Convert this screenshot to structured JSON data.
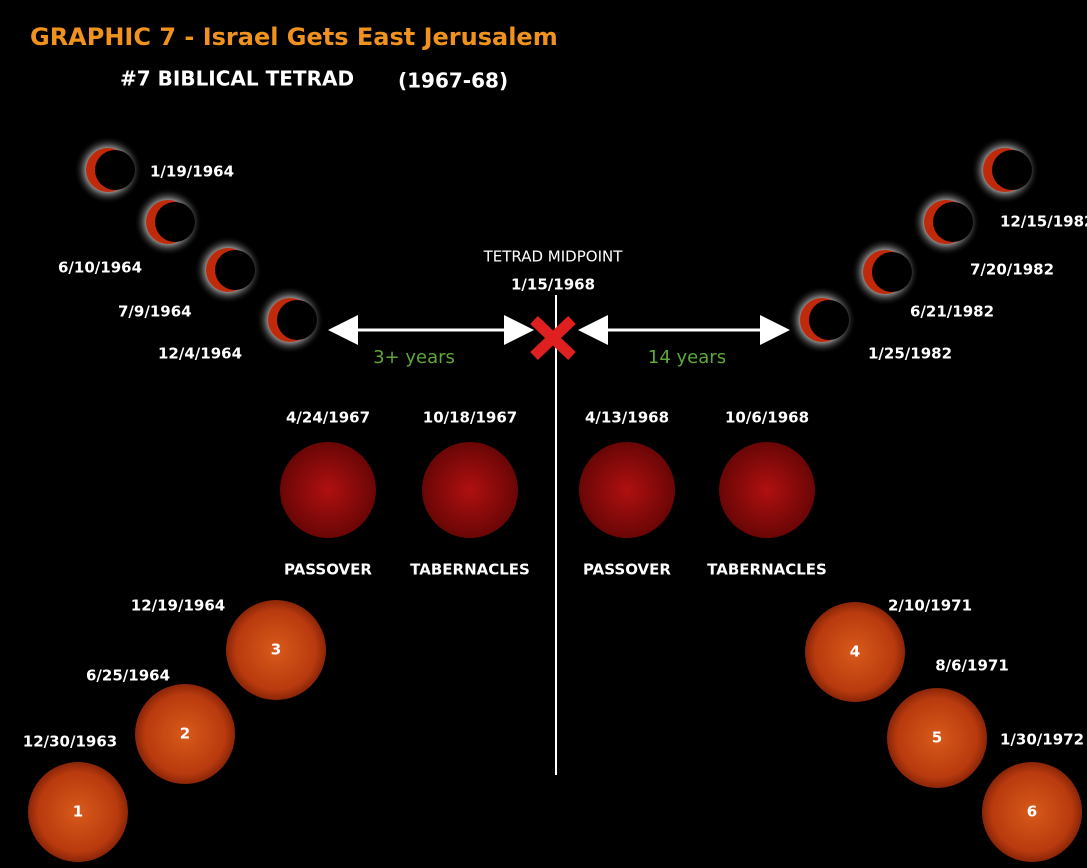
{
  "header": {
    "title": "GRAPHIC 7 - Israel Gets East Jerusalem",
    "subtitle": "#7 BIBLICAL TETRAD",
    "subtitle_years": "(1967-68)"
  },
  "midpoint": {
    "label": "TETRAD MIDPOINT",
    "date": "1/15/1968"
  },
  "intervals": {
    "left": "3+ years",
    "right": "14 years"
  },
  "partial_left": [
    {
      "date": "1/19/1964"
    },
    {
      "date": "6/10/1964"
    },
    {
      "date": "7/9/1964"
    },
    {
      "date": "12/4/1964"
    }
  ],
  "partial_right": [
    {
      "date": "12/15/1982"
    },
    {
      "date": "7/20/1982"
    },
    {
      "date": "6/21/1982"
    },
    {
      "date": "1/25/1982"
    }
  ],
  "tetrad": [
    {
      "date": "4/24/1967",
      "feast": "PASSOVER"
    },
    {
      "date": "10/18/1967",
      "feast": "TABERNACLES"
    },
    {
      "date": "4/13/1968",
      "feast": "PASSOVER"
    },
    {
      "date": "10/6/1968",
      "feast": "TABERNACLES"
    }
  ],
  "suns": [
    {
      "date": "12/30/1963",
      "label": "1"
    },
    {
      "date": "6/25/1964",
      "label": "2"
    },
    {
      "date": "12/19/1964",
      "label": "3"
    },
    {
      "date": "2/10/1971",
      "label": "4"
    },
    {
      "date": "8/6/1971",
      "label": "5"
    },
    {
      "date": "1/30/1972",
      "label": "6"
    }
  ]
}
